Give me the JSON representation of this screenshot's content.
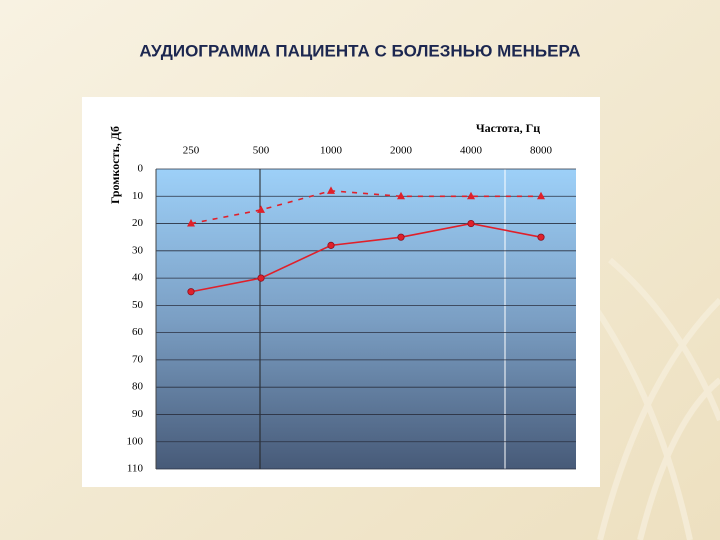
{
  "title": "АУДИОГРАММА ПАЦИЕНТА С БОЛЕЗНЬЮ МЕНЬЕРА",
  "chart_data": {
    "type": "line",
    "x_label": "Частота, Гц",
    "y_label": "Громкость, Дб",
    "categories": [
      "250",
      "500",
      "1000",
      "2000",
      "4000",
      "8000"
    ],
    "series": [
      {
        "color": "#e0202a",
        "line_style": "solid",
        "marker": "circle",
        "values": [
          45,
          40,
          28,
          25,
          20,
          25
        ]
      },
      {
        "color": "#e0202a",
        "line_style": "dashed",
        "marker": "triangle",
        "values": [
          20,
          15,
          8,
          10,
          10,
          10
        ]
      }
    ],
    "ylim": [
      0,
      110
    ],
    "y_inverted": true,
    "yticks": [
      0,
      10,
      20,
      30,
      40,
      50,
      60,
      70,
      80,
      90,
      100,
      110
    ],
    "grid": true
  }
}
